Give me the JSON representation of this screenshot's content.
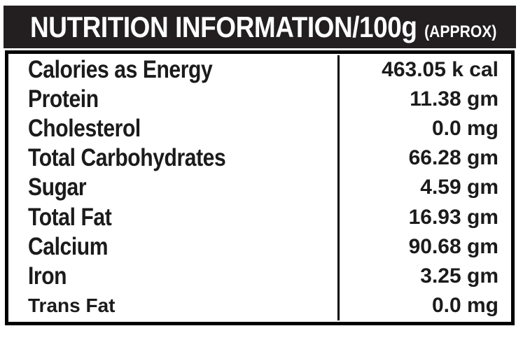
{
  "header": {
    "title": "NUTRITION INFORMATION/100g",
    "suffix": "(APPROX)"
  },
  "table": {
    "rows": [
      {
        "label": "Calories as Energy",
        "value": "463.05 k cal"
      },
      {
        "label": "Protein",
        "value": "11.38 gm"
      },
      {
        "label": "Cholesterol",
        "value": "0.0 mg"
      },
      {
        "label": "Total Carbohydrates",
        "value": "66.28 gm"
      },
      {
        "label": "Sugar",
        "value": "4.59 gm"
      },
      {
        "label": "Total Fat",
        "value": "16.93 gm"
      },
      {
        "label": "Calcium",
        "value": "90.68 gm"
      },
      {
        "label": "Iron",
        "value": "3.25 gm"
      },
      {
        "label": "Trans Fat",
        "value": "0.0 mg"
      }
    ]
  },
  "colors": {
    "header_bg": "#231f20",
    "border": "#000000",
    "text": "#1b1b1b"
  }
}
